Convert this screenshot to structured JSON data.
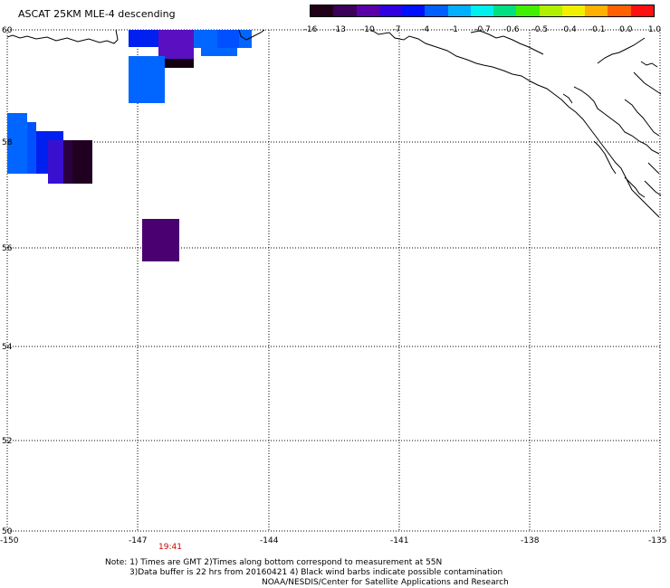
{
  "title": "ASCAT 25KM MLE-4 descending",
  "colorbar": {
    "labels": [
      "-16",
      "-13",
      "-10",
      "-7",
      "-4",
      "-1",
      "-0.7",
      "-0.6",
      "-0.5",
      "-0.4",
      "-0.1",
      "0.0",
      "1.0"
    ],
    "colors": [
      "#200018",
      "#3a005a",
      "#5a00a8",
      "#3000e0",
      "#0010ff",
      "#0060ff",
      "#00b0ff",
      "#00f0f0",
      "#00e080",
      "#40f000",
      "#b0f000",
      "#f0f000",
      "#ffb000",
      "#ff6000",
      "#ff1010"
    ]
  },
  "axes": {
    "lat_labels": [
      "60",
      "58",
      "56",
      "54",
      "52",
      "50"
    ],
    "lon_labels": [
      "-150",
      "-147",
      "-144",
      "-141",
      "-138",
      "-135"
    ]
  },
  "time_label": "19:41",
  "notes": {
    "line1": "Note: 1) Times are GMT 2)Times along bottom correspond to measurement at 55N",
    "line2": "3)Data buffer is 22 hrs from 20160421 4) Black wind barbs indicate possible contamination",
    "line3": "NOAA/NESDIS/Center for Satellite Applications and Research"
  },
  "colors": {
    "pixel_blue": "#0066ff",
    "pixel_darkblue": "#0020f0",
    "pixel_purple": "#4a0070",
    "pixel_violet": "#5a10c0",
    "pixel_black": "#140010"
  }
}
